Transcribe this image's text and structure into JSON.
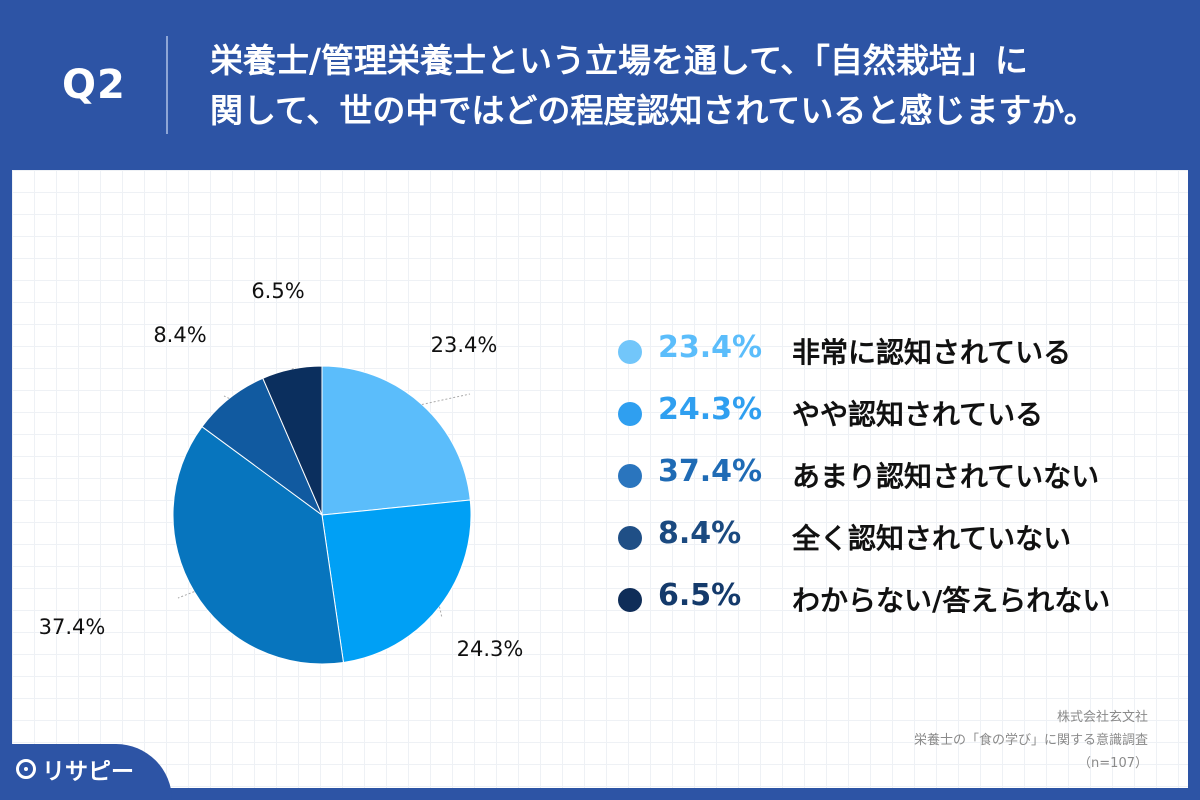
{
  "header": {
    "q_label": "Q2",
    "question_line1": "栄養士/管理栄養士という立場を通して、「自然栽培」に",
    "question_line2": "関して、世の中ではどの程度認知されていると感じますか。"
  },
  "chart_data": {
    "type": "pie",
    "categories": [
      "非常に認知されている",
      "やや認知されている",
      "あまり認知されていない",
      "全く認知されていない",
      "わからない/答えられない"
    ],
    "values": [
      23.4,
      24.3,
      37.4,
      8.4,
      6.5
    ],
    "value_labels": [
      "23.4%",
      "24.3%",
      "37.4%",
      "8.4%",
      "6.5%"
    ],
    "colors": [
      "#5bbdfb",
      "#00a0f5",
      "#0775be",
      "#115aa0",
      "#0b2f5e"
    ],
    "start": "12 o'clock, clockwise",
    "legend_position": "right"
  },
  "legend": [
    {
      "pct": "23.4%",
      "label": "非常に認知されている",
      "dot_color": "#72c6fa",
      "text_color": "#5bbdfb"
    },
    {
      "pct": "24.3%",
      "label": "やや認知されている",
      "dot_color": "#2f9ff0",
      "text_color": "#2f9ff0"
    },
    {
      "pct": "37.4%",
      "label": "あまり認知されていない",
      "dot_color": "#2a75be",
      "text_color": "#1f6bb5"
    },
    {
      "pct": "8.4%",
      "label": "全く認知されていない",
      "dot_color": "#1f4f86",
      "text_color": "#1b4a80"
    },
    {
      "pct": "6.5%",
      "label": "わからない/答えられない",
      "dot_color": "#0f2d58",
      "text_color": "#143a6b"
    }
  ],
  "source": {
    "line1": "株式会社玄文社",
    "line2": "栄養士の「食の学び」に関する意識調査",
    "line3": "（n=107）"
  },
  "brand": {
    "name": "リサピー",
    "icon": "lightbulb-pin-icon"
  }
}
